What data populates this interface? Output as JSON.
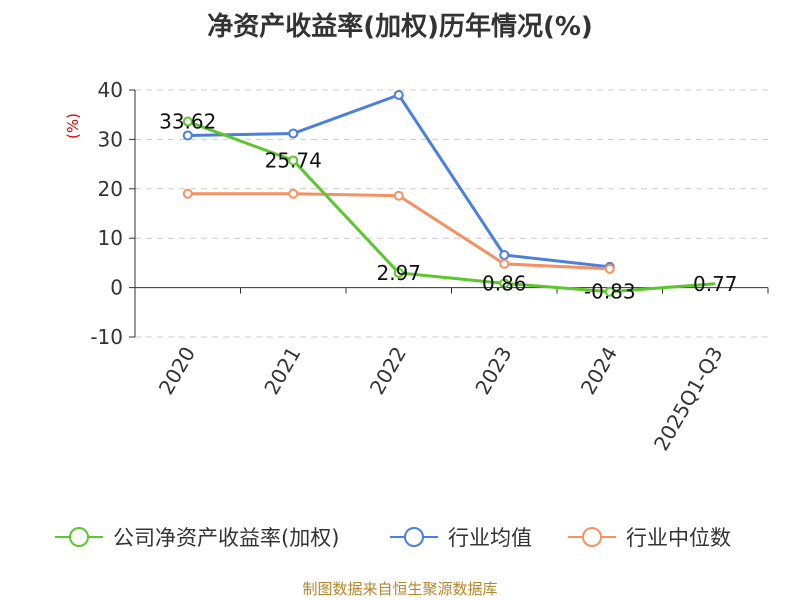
{
  "chart_data": {
    "type": "line",
    "title": "净资产收益率(加权)历年情况(%)",
    "ylabel": "(%)",
    "xlabel": "",
    "categories": [
      "2020",
      "2021",
      "2022",
      "2023",
      "2024",
      "2025Q1-Q3"
    ],
    "ylim": [
      -10,
      40
    ],
    "yticks": [
      40,
      30,
      20,
      10,
      0,
      -10
    ],
    "grid": true,
    "legend_position": "bottom",
    "series": [
      {
        "name": "公司净资产收益率(加权)",
        "color": "#5cc72c",
        "values": [
          33.62,
          25.74,
          2.97,
          0.86,
          -0.83,
          0.77
        ],
        "labels": [
          "33.62",
          "25.74",
          "2.97",
          "0.86",
          "-0.83",
          "0.77"
        ]
      },
      {
        "name": "行业均值",
        "color": "#4a7fdc",
        "values": [
          30.8,
          31.2,
          39.0,
          6.6,
          4.2,
          null
        ]
      },
      {
        "name": "行业中位数",
        "color": "#f79060",
        "values": [
          19.0,
          19.0,
          18.6,
          4.8,
          3.8,
          null
        ]
      }
    ]
  },
  "source": "制图数据来自恒生聚源数据库"
}
